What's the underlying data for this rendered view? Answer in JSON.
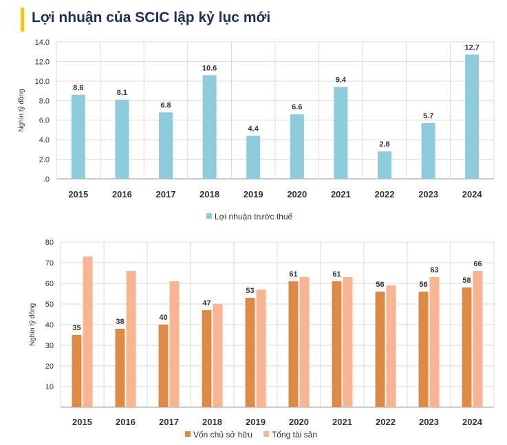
{
  "header": {
    "title": "Lợi nhuận của SCIC lập kỷ lục mới"
  },
  "colors": {
    "accent_bar": "#f5c518",
    "title_text": "#1c2f57"
  },
  "chart_data": [
    {
      "type": "bar",
      "categories": [
        "2015",
        "2016",
        "2017",
        "2018",
        "2019",
        "2020",
        "2021",
        "2022",
        "2023",
        "2024"
      ],
      "series": [
        {
          "name": "Lợi nhuận trước thuế",
          "color": "#8ecbdb",
          "values": [
            8.6,
            8.1,
            6.8,
            10.6,
            4.4,
            6.6,
            9.4,
            2.8,
            5.7,
            12.7
          ],
          "labels": [
            "8.6",
            "8.1",
            "6.8",
            "10.6",
            "4.4",
            "6.6",
            "9.4",
            "2.8",
            "5.7",
            "12.7"
          ]
        }
      ],
      "ylabel": "Nghìn tỷ đồng",
      "ylim": [
        0,
        14
      ],
      "yticks": [
        ".0",
        "2.0",
        "4.0",
        "6.0",
        "8.0",
        "10.0",
        "12.0",
        "14.0"
      ],
      "grid": true,
      "legend": "bottom"
    },
    {
      "type": "bar",
      "categories": [
        "2015",
        "2016",
        "2017",
        "2018",
        "2019",
        "2020",
        "2021",
        "2022",
        "2023",
        "2024"
      ],
      "series": [
        {
          "name": "Vốn chủ sở hữu",
          "color": "#dd8a45",
          "values": [
            35,
            38,
            40,
            47,
            53,
            61,
            61,
            56,
            56,
            58
          ],
          "labels": [
            "35",
            "38",
            "40",
            "47",
            "53",
            "61",
            "61",
            "56",
            "56",
            "58"
          ]
        },
        {
          "name": "Tổng tài sản",
          "color": "#f9b592",
          "values": [
            73,
            66,
            61,
            50,
            57,
            63,
            63,
            59,
            63,
            66
          ],
          "labels": [
            "",
            "",
            "",
            "",
            "",
            "",
            "",
            "",
            "63",
            "66"
          ]
        }
      ],
      "ylabel": "Nghìn tỷ đồng",
      "ylim": [
        0,
        80
      ],
      "yticks": [
        "",
        "10",
        "20",
        "30",
        "40",
        "50",
        "60",
        "70",
        "80"
      ],
      "grid": true,
      "legend": "bottom"
    }
  ]
}
